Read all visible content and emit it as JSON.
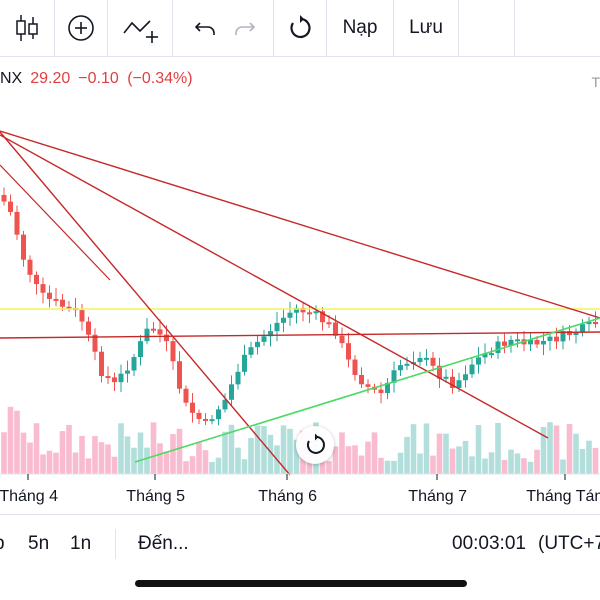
{
  "toolbar": {
    "load_label": "Nạp",
    "save_label": "Lưu",
    "icons": [
      "candles-icon",
      "add-circle-icon",
      "indicator-add-icon",
      "undo-icon",
      "redo-icon",
      "reset-icon"
    ]
  },
  "quote": {
    "symbol": "NX",
    "price": "29.20",
    "change": "−0.10",
    "change_pct": "(−0.34%)",
    "right_label": "T",
    "down_color": "#e0403f"
  },
  "chart_data": {
    "type": "candlestick",
    "x_tick_labels": [
      "Tháng 4",
      "Tháng 5",
      "Tháng 6",
      "Tháng 7",
      "Tháng Tám"
    ],
    "series_colors": {
      "up": "#26a69a",
      "down": "#ef5350",
      "volume_up": "#b2dfdb",
      "volume_down": "#f8bbd0"
    },
    "drawings": [
      {
        "kind": "horizontal",
        "color": "#f5f55a"
      },
      {
        "kind": "horizontal",
        "color": "#c62828"
      },
      {
        "kind": "trendline",
        "color": "#c62828"
      },
      {
        "kind": "trendline",
        "color": "#c62828"
      },
      {
        "kind": "trendline",
        "color": "#c62828"
      },
      {
        "kind": "trendline",
        "color": "#c62828"
      },
      {
        "kind": "trendline",
        "color": "#4cd964"
      }
    ]
  },
  "bottom": {
    "range_partial": "p",
    "range_5d": "5n",
    "range_1d": "1n",
    "goto": "Đến...",
    "time": "00:03:01",
    "tz": "(UTC+7"
  }
}
